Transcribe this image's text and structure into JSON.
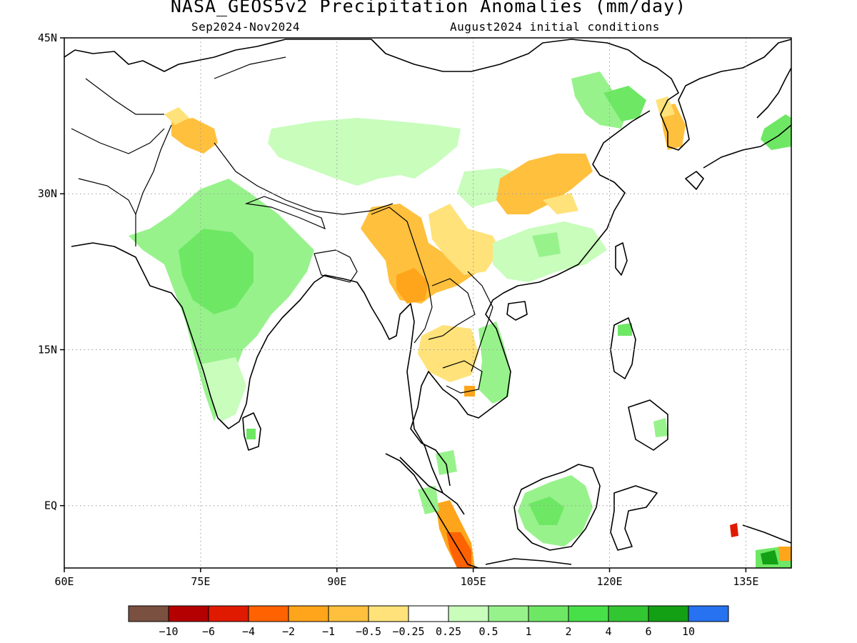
{
  "title": "NASA_GEOS5v2 Precipitation Anomalies (mm/day)",
  "subtitle_left": "Sep2024-Nov2024",
  "subtitle_right": "August2024 initial conditions",
  "map": {
    "lon_range": [
      60,
      140
    ],
    "lat_range": [
      -6,
      45
    ],
    "grid": true,
    "lon_ticks": [
      {
        "value": 60,
        "label": "60E"
      },
      {
        "value": 75,
        "label": "75E"
      },
      {
        "value": 90,
        "label": "90E"
      },
      {
        "value": 105,
        "label": "105E"
      },
      {
        "value": 120,
        "label": "120E"
      },
      {
        "value": 135,
        "label": "135E"
      }
    ],
    "lat_ticks": [
      {
        "value": 45,
        "label": "45N"
      },
      {
        "value": 30,
        "label": "30N"
      },
      {
        "value": 15,
        "label": "15N"
      },
      {
        "value": 0,
        "label": "EQ"
      }
    ]
  },
  "colorbar": {
    "colors": [
      "#7a5040",
      "#b40000",
      "#e01a00",
      "#ff6200",
      "#ffa51b",
      "#ffc03d",
      "#ffe27a",
      "#ffffff",
      "#c8fdbc",
      "#98f28c",
      "#6ee864",
      "#48e048",
      "#33c633",
      "#14a014",
      "#2672f0"
    ],
    "labels": [
      "-10",
      "-6",
      "-4",
      "-2",
      "-1",
      "-0.5",
      "-0.25",
      "0.25",
      "0.5",
      "1",
      "2",
      "4",
      "6",
      "10"
    ]
  },
  "chart_data": {
    "type": "heatmap",
    "title": "NASA_GEOS5v2 Precipitation Anomalies (mm/day)",
    "units": "mm/day",
    "period": "Sep2024-Nov2024",
    "initial_conditions": "August2024",
    "regions": [
      {
        "lon": [
          63,
          87
        ],
        "lat": [
          16,
          30
        ],
        "value": 1
      },
      {
        "lon": [
          70,
          80
        ],
        "lat": [
          19,
          26
        ],
        "value": 2
      },
      {
        "lon": [
          76,
          80
        ],
        "lat": [
          8,
          15
        ],
        "value": 1
      },
      {
        "lon": [
          75,
          78
        ],
        "lat": [
          33,
          37
        ],
        "value": -1
      },
      {
        "lon": [
          83,
          105
        ],
        "lat": [
          35,
          38
        ],
        "value": 0.5
      },
      {
        "lon": [
          97,
          103
        ],
        "lat": [
          28,
          30
        ],
        "value": 0.5
      },
      {
        "lon": [
          94,
          103
        ],
        "lat": [
          19,
          27
        ],
        "value": -1
      },
      {
        "lon": [
          101,
          104
        ],
        "lat": [
          13,
          18
        ],
        "value": -0.5
      },
      {
        "lon": [
          104,
          109
        ],
        "lat": [
          10,
          18
        ],
        "value": 1
      },
      {
        "lon": [
          108,
          115
        ],
        "lat": [
          28,
          32
        ],
        "value": -1
      },
      {
        "lon": [
          112,
          124
        ],
        "lat": [
          38,
          43
        ],
        "value": 1
      },
      {
        "lon": [
          125,
          128
        ],
        "lat": [
          35,
          39
        ],
        "value": -0.5
      },
      {
        "lon": [
          109,
          117
        ],
        "lat": [
          -3,
          3
        ],
        "value": 1
      },
      {
        "lon": [
          102,
          106
        ],
        "lat": [
          -4,
          1
        ],
        "value": -2
      },
      {
        "lon": [
          103,
          106
        ],
        "lat": [
          -6,
          -3
        ],
        "value": -4
      },
      {
        "lon": [
          134,
          140
        ],
        "lat": [
          -6,
          -4
        ],
        "value": 2
      }
    ]
  }
}
